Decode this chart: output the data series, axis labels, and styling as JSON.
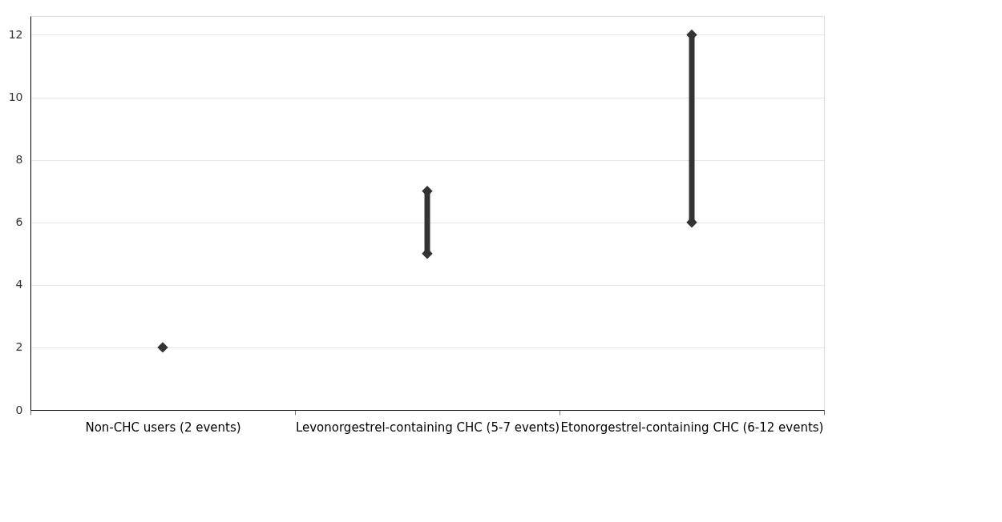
{
  "chart_data": {
    "type": "scatter",
    "categories": [
      "Non-CHC users (2 events)",
      "Levonorgestrel-containing CHC (5-7 events)",
      "Etonorgestrel-containing CHC (6-12 events)"
    ],
    "series": [
      {
        "type": "bar",
        "color": "#333333",
        "base": [
          null,
          5,
          6
        ],
        "values": [
          null,
          2,
          6
        ]
      },
      {
        "color": "#333333",
        "values": [
          2,
          5,
          6
        ]
      },
      {
        "color": "#333333",
        "values": [
          null,
          7,
          12
        ]
      }
    ],
    "marker": "diamond",
    "ylim": [
      0,
      12.6
    ],
    "yticks": [
      0,
      2,
      4,
      6,
      8,
      10,
      12
    ],
    "grid": "y"
  }
}
